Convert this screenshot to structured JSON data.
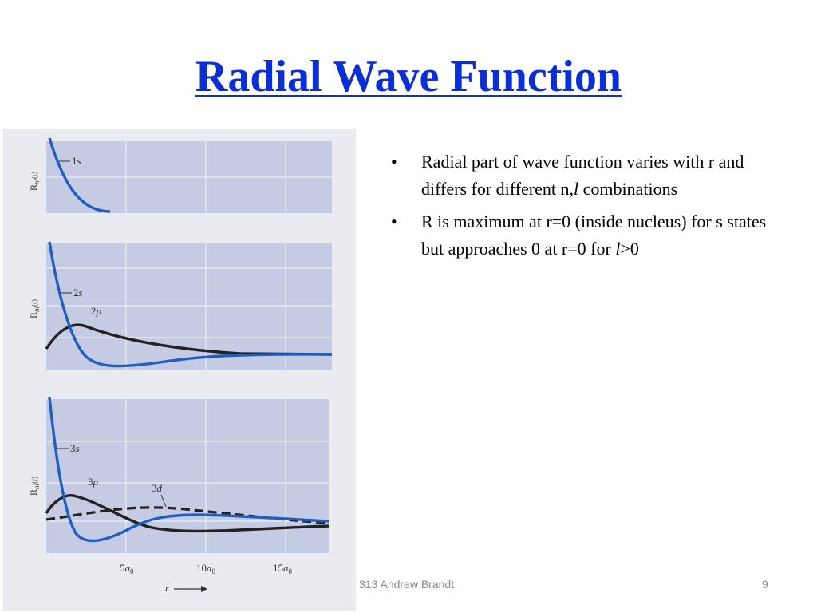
{
  "slide": {
    "title": "Radial Wave Function",
    "bullet_char": "•",
    "bullets": [
      {
        "before": "Radial part of wave function varies with r and differs for different n,",
        "italic": "l",
        "after": " combinations"
      },
      {
        "before": "R is maximum at r=0 (inside nucleus) for s states but approaches 0 at r=0 for ",
        "italic": "l",
        "after": ">0"
      }
    ],
    "footer": {
      "center": "313  Andrew Brandt",
      "page": "9"
    }
  },
  "figure": {
    "colors": {
      "background": "#e9ebf1",
      "panel": "#c4cbe2",
      "grid": "#eef0f8",
      "s_curve": "#1f5fbf",
      "other_curve": "#222222"
    },
    "ylabel_parts": [
      "R",
      "nl",
      "(r)"
    ],
    "x_tick_labels": [
      {
        "coef": "5",
        "a": "a",
        "sub": "0"
      },
      {
        "coef": "10",
        "a": "a",
        "sub": "0"
      },
      {
        "coef": "15",
        "a": "a",
        "sub": "0"
      }
    ],
    "x_axis_label": "r",
    "panels": [
      {
        "curves": [
          {
            "num": "1",
            "letter": "s"
          }
        ]
      },
      {
        "curves": [
          {
            "num": "2",
            "letter": "s"
          },
          {
            "num": "2",
            "letter": "p"
          }
        ]
      },
      {
        "curves": [
          {
            "num": "3",
            "letter": "s"
          },
          {
            "num": "3",
            "letter": "p"
          },
          {
            "num": "3",
            "letter": "d"
          }
        ]
      }
    ]
  }
}
